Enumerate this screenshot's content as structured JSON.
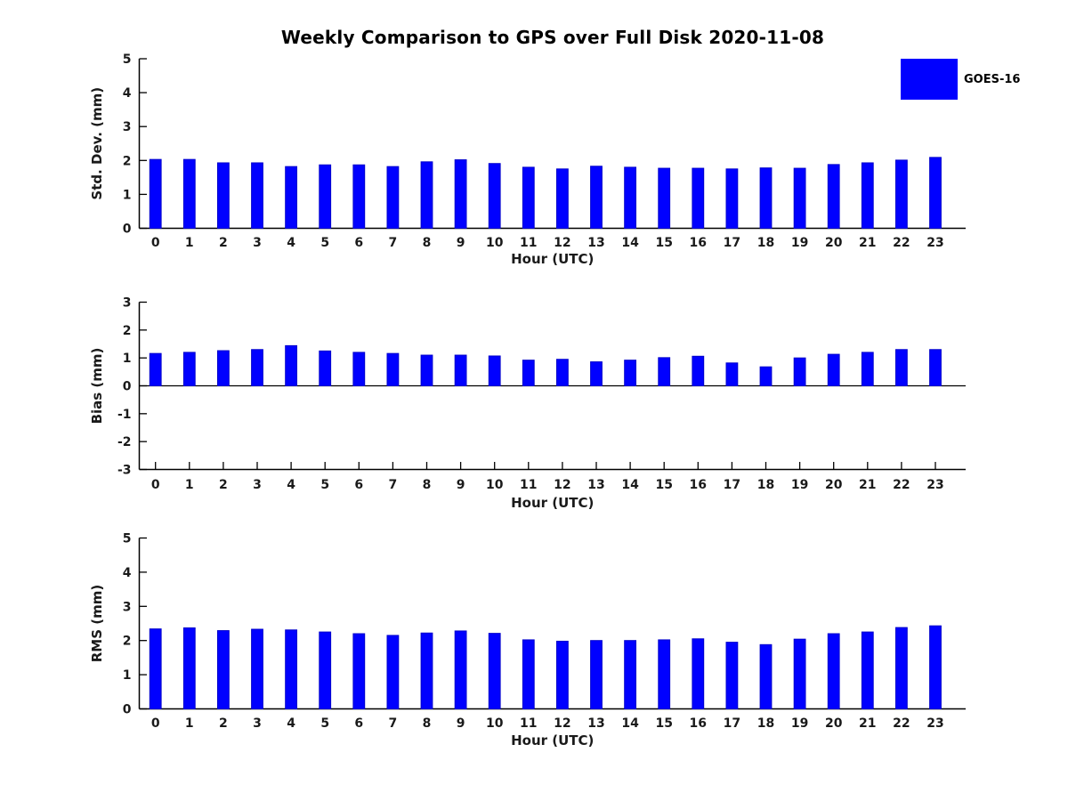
{
  "title": "Weekly Comparison to GPS over Full Disk 2020-11-08",
  "legend": {
    "label": "GOES-16",
    "swatch_color": "#0000ff"
  },
  "colors": {
    "bar_fill": "#0000ff",
    "bar_edge": "#0000cc",
    "axis": "#000000",
    "text": "#1a1a1a"
  },
  "chart_data": [
    {
      "type": "bar",
      "series_name": "GOES-16",
      "ylabel": "Std. Dev. (mm)",
      "xlabel": "Hour (UTC)",
      "categories": [
        "0",
        "1",
        "2",
        "3",
        "4",
        "5",
        "6",
        "7",
        "8",
        "9",
        "10",
        "11",
        "12",
        "13",
        "14",
        "15",
        "16",
        "17",
        "18",
        "19",
        "20",
        "21",
        "22",
        "23"
      ],
      "values": [
        2.03,
        2.03,
        1.93,
        1.93,
        1.82,
        1.87,
        1.87,
        1.82,
        1.96,
        2.02,
        1.91,
        1.8,
        1.75,
        1.83,
        1.8,
        1.77,
        1.77,
        1.75,
        1.78,
        1.77,
        1.88,
        1.93,
        2.01,
        2.09
      ],
      "ylim": [
        0,
        5
      ],
      "yticks": [
        0,
        1,
        2,
        3,
        4,
        5
      ],
      "grid": false,
      "legend_position": "upper-right-outside"
    },
    {
      "type": "bar",
      "series_name": "GOES-16",
      "ylabel": "Bias (mm)",
      "xlabel": "Hour (UTC)",
      "categories": [
        "0",
        "1",
        "2",
        "3",
        "4",
        "5",
        "6",
        "7",
        "8",
        "9",
        "10",
        "11",
        "12",
        "13",
        "14",
        "15",
        "16",
        "17",
        "18",
        "19",
        "20",
        "21",
        "22",
        "23"
      ],
      "values": [
        1.16,
        1.2,
        1.26,
        1.3,
        1.44,
        1.25,
        1.2,
        1.16,
        1.1,
        1.1,
        1.07,
        0.92,
        0.95,
        0.86,
        0.92,
        1.01,
        1.06,
        0.82,
        0.68,
        1.0,
        1.13,
        1.2,
        1.3,
        1.3
      ],
      "ylim": [
        -3,
        3
      ],
      "yticks": [
        3,
        2,
        1,
        0,
        -1,
        -2,
        -3
      ],
      "grid": false
    },
    {
      "type": "bar",
      "series_name": "GOES-16",
      "ylabel": "RMS (mm)",
      "xlabel": "Hour (UTC)",
      "categories": [
        "0",
        "1",
        "2",
        "3",
        "4",
        "5",
        "6",
        "7",
        "8",
        "9",
        "10",
        "11",
        "12",
        "13",
        "14",
        "15",
        "16",
        "17",
        "18",
        "19",
        "20",
        "21",
        "22",
        "23"
      ],
      "values": [
        2.34,
        2.37,
        2.29,
        2.33,
        2.31,
        2.25,
        2.2,
        2.15,
        2.22,
        2.28,
        2.21,
        2.02,
        1.98,
        2.0,
        2.0,
        2.02,
        2.05,
        1.95,
        1.88,
        2.04,
        2.2,
        2.25,
        2.38,
        2.43
      ],
      "ylim": [
        0,
        5
      ],
      "yticks": [
        0,
        1,
        2,
        3,
        4,
        5
      ],
      "grid": false
    }
  ]
}
